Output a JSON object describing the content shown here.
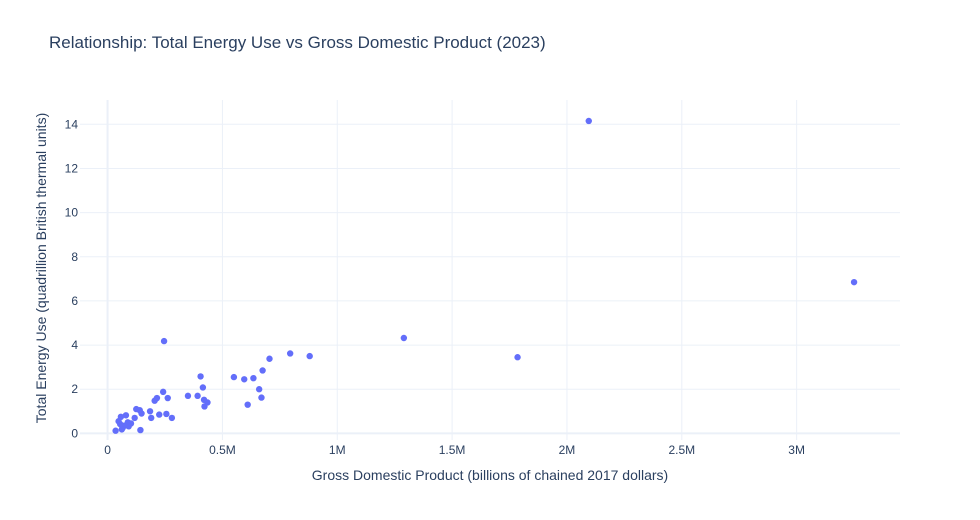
{
  "chart_data": {
    "type": "scatter",
    "title": "Relationship: Total Energy Use vs Gross Domestic Product (2023)",
    "xlabel": "Gross Domestic Product (billions of chained 2017 dollars)",
    "ylabel": "Total Energy Use (quadrillion British thermal units)",
    "xlim": [
      -120000,
      3450000
    ],
    "ylim": [
      -0.3,
      15.1
    ],
    "x_ticks": [
      0,
      500000,
      1000000,
      1500000,
      2000000,
      2500000,
      3000000
    ],
    "x_tick_labels": [
      "0",
      "0.5M",
      "1M",
      "1.5M",
      "2M",
      "2.5M",
      "3M"
    ],
    "y_ticks": [
      0,
      2,
      4,
      6,
      8,
      10,
      12,
      14
    ],
    "y_tick_labels": [
      "0",
      "2",
      "4",
      "6",
      "8",
      "10",
      "12",
      "14"
    ],
    "grid": true,
    "legend": false,
    "marker_color": "#636efa",
    "gridline_color": "#ebf0f8",
    "x": [
      3250000,
      2095000,
      1785000,
      1290000,
      880000,
      795000,
      705000,
      675000,
      670000,
      660000,
      635000,
      610000,
      595000,
      550000,
      435000,
      422000,
      420000,
      415000,
      405000,
      392000,
      350000,
      280000,
      262000,
      256000,
      242000,
      246000,
      225000,
      215000,
      205000,
      190000,
      185000,
      148000,
      143000,
      140000,
      125000,
      118000,
      102000,
      92000,
      88000,
      80000,
      72000,
      66000,
      62000,
      58000,
      55000,
      48000,
      35000
    ],
    "y": [
      6.85,
      14.15,
      3.45,
      4.32,
      3.5,
      3.62,
      3.38,
      2.85,
      1.62,
      2.0,
      2.5,
      1.3,
      2.45,
      2.55,
      1.4,
      1.22,
      1.52,
      2.08,
      2.58,
      1.7,
      1.7,
      0.7,
      1.6,
      0.88,
      1.88,
      4.18,
      0.85,
      1.6,
      1.48,
      0.7,
      1.0,
      0.9,
      0.15,
      1.05,
      1.1,
      0.7,
      0.45,
      0.32,
      0.5,
      0.82,
      0.35,
      0.25,
      0.18,
      0.75,
      0.42,
      0.55,
      0.12
    ]
  }
}
